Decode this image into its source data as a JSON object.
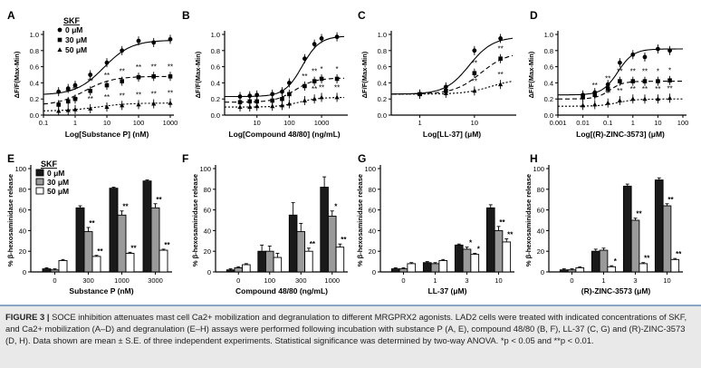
{
  "caption": {
    "title": "FIGURE 3 |",
    "text": "SOCE inhibition attenuates mast cell Ca2+ mobilization and degranulation to different MRGPRX2 agonists. LAD2 cells were treated with indicated concentrations of SKF, and Ca2+ mobilization (A–D) and degranulation (E–H) assays were performed following incubation with substance P (A, E), compound 48/80 (B, F), LL-37 (C, G) and (R)-ZINC-3573 (D, H). Data shown are mean ± S.E. of three independent experiments. Statistical significance was determined by two-way ANOVA. *p < 0.05 and **p < 0.01."
  },
  "legend": {
    "title": "SKF",
    "line_entries": [
      "0 μM",
      "30 μM",
      "50 μM"
    ],
    "bar_entries": [
      "0 μM",
      "30 μM",
      "50 μM"
    ]
  },
  "colors": {
    "bar_0": "#1a1a1a",
    "bar_30": "#9a9a9a",
    "bar_50": "#ffffff",
    "caption_bg": "#e9e9e9",
    "caption_rule": "#8aa7c7"
  },
  "chart_data": [
    {
      "panel": "A",
      "type": "line",
      "xlabel": "Log[Substance P] (nM)",
      "ylabel": "ΔF/F(Max-Min)",
      "x_scale": "log",
      "xlim": [
        0.1,
        1000
      ],
      "x_ticks": [
        "0.1",
        "1",
        "10",
        "100",
        "1000"
      ],
      "ylim": [
        0,
        1.0
      ],
      "y_ticks": [
        "0.0",
        "0.2",
        "0.4",
        "0.6",
        "0.8",
        "1.0"
      ],
      "series": [
        {
          "name": "0 μM",
          "x": [
            0.3,
            0.6,
            1,
            3,
            10,
            30,
            100,
            300,
            1000
          ],
          "y": [
            0.29,
            0.33,
            0.37,
            0.5,
            0.65,
            0.8,
            0.92,
            0.9,
            0.94
          ]
        },
        {
          "name": "30 μM",
          "x": [
            0.3,
            0.6,
            1,
            3,
            10,
            30,
            100,
            300,
            1000
          ],
          "y": [
            0.13,
            0.17,
            0.2,
            0.3,
            0.37,
            0.42,
            0.47,
            0.48,
            0.48
          ]
        },
        {
          "name": "50 μM",
          "x": [
            0.3,
            0.6,
            1,
            3,
            10,
            30,
            100,
            300,
            1000
          ],
          "y": [
            0.05,
            0.06,
            0.07,
            0.08,
            0.1,
            0.12,
            0.13,
            0.14,
            0.15
          ]
        }
      ],
      "annotations": [
        "**",
        "**",
        "**",
        "**",
        "**",
        "**",
        "**",
        "**",
        "**",
        "**",
        "**",
        "**",
        "**",
        "**",
        "**"
      ]
    },
    {
      "panel": "B",
      "type": "line",
      "xlabel": "Log[Compound 48/80] (ng/mL)",
      "ylabel": "ΔF/F(Max-Min)",
      "x_scale": "log",
      "xlim": [
        1,
        5000
      ],
      "x_ticks": [
        "10",
        "100",
        "1000"
      ],
      "ylim": [
        0,
        1.0
      ],
      "y_ticks": [
        "0.0",
        "0.2",
        "0.4",
        "0.6",
        "0.8",
        "1.0"
      ],
      "series": [
        {
          "name": "0 μM",
          "x": [
            3,
            6,
            10,
            30,
            60,
            100,
            300,
            600,
            1000,
            3000
          ],
          "y": [
            0.23,
            0.24,
            0.25,
            0.26,
            0.29,
            0.4,
            0.7,
            0.88,
            0.95,
            0.97
          ]
        },
        {
          "name": "30 μM",
          "x": [
            3,
            6,
            10,
            30,
            60,
            100,
            300,
            600,
            1000,
            3000
          ],
          "y": [
            0.16,
            0.17,
            0.17,
            0.18,
            0.2,
            0.26,
            0.36,
            0.42,
            0.45,
            0.45
          ]
        },
        {
          "name": "50 μM",
          "x": [
            3,
            6,
            10,
            30,
            60,
            100,
            300,
            600,
            1000,
            3000
          ],
          "y": [
            0.1,
            0.1,
            0.11,
            0.11,
            0.12,
            0.14,
            0.18,
            0.2,
            0.22,
            0.22
          ]
        }
      ],
      "annotations": [
        "*",
        "*",
        "**",
        "**",
        "**",
        "**",
        "**"
      ]
    },
    {
      "panel": "C",
      "type": "line",
      "xlabel": "Log[LL-37] (μM)",
      "ylabel": "ΔF/F(Max-Min)",
      "x_scale": "log",
      "xlim": [
        0.3,
        50
      ],
      "x_ticks": [
        "1",
        "10"
      ],
      "ylim": [
        0,
        1.0
      ],
      "y_ticks": [
        "0.0",
        "0.2",
        "0.4",
        "0.6",
        "0.8",
        "1.0"
      ],
      "series": [
        {
          "name": "0 μM",
          "x": [
            1,
            3,
            10,
            30
          ],
          "y": [
            0.26,
            0.35,
            0.8,
            0.95
          ]
        },
        {
          "name": "30 μM",
          "x": [
            1,
            3,
            10,
            30
          ],
          "y": [
            0.26,
            0.3,
            0.52,
            0.7
          ]
        },
        {
          "name": "50 μM",
          "x": [
            1,
            3,
            10,
            30
          ],
          "y": [
            0.26,
            0.27,
            0.3,
            0.38
          ]
        }
      ],
      "annotations": [
        "**",
        "**",
        "**",
        "**"
      ]
    },
    {
      "panel": "D",
      "type": "line",
      "xlabel": "Log[(R)-ZINC-3573] (μM)",
      "ylabel": "ΔF/F(Max-Min)",
      "x_scale": "log",
      "xlim": [
        0.001,
        100
      ],
      "x_ticks": [
        "0.001",
        "0.01",
        "0.1",
        "1",
        "10",
        "100"
      ],
      "ylim": [
        0,
        1.0
      ],
      "y_ticks": [
        "0.0",
        "0.2",
        "0.4",
        "0.6",
        "0.8",
        "1.0"
      ],
      "series": [
        {
          "name": "0 μM",
          "x": [
            0.01,
            0.03,
            0.1,
            0.3,
            1,
            3,
            10,
            30
          ],
          "y": [
            0.25,
            0.28,
            0.38,
            0.65,
            0.75,
            0.72,
            0.82,
            0.8
          ]
        },
        {
          "name": "30 μM",
          "x": [
            0.01,
            0.03,
            0.1,
            0.3,
            1,
            3,
            10,
            30
          ],
          "y": [
            0.22,
            0.25,
            0.33,
            0.42,
            0.42,
            0.42,
            0.42,
            0.43
          ]
        },
        {
          "name": "50 μM",
          "x": [
            0.01,
            0.03,
            0.1,
            0.3,
            1,
            3,
            10,
            30
          ],
          "y": [
            0.12,
            0.13,
            0.15,
            0.18,
            0.2,
            0.2,
            0.2,
            0.21
          ]
        }
      ],
      "annotations": [
        "*",
        "*",
        "**",
        "**",
        "**",
        "**",
        "**",
        "**",
        "**",
        "**",
        "**",
        "**",
        "**"
      ]
    },
    {
      "panel": "E",
      "type": "bar",
      "xlabel": "Substance P (nM)",
      "ylabel": "% β-hexosaminidase release",
      "categories": [
        "0",
        "300",
        "1000",
        "3000"
      ],
      "ylim": [
        0,
        100
      ],
      "y_ticks": [
        "0",
        "20",
        "40",
        "60",
        "80",
        "100"
      ],
      "series": [
        {
          "name": "0 μM",
          "values": [
            3,
            62,
            81,
            88
          ],
          "errors": [
            1,
            2,
            1,
            1
          ]
        },
        {
          "name": "30 μM",
          "values": [
            2,
            39,
            55,
            62
          ],
          "errors": [
            1,
            4,
            4,
            4
          ]
        },
        {
          "name": "50 μM",
          "values": [
            11,
            15,
            18,
            21
          ],
          "errors": [
            1,
            1,
            1,
            1
          ]
        }
      ],
      "significance": [
        [
          "",
          "**",
          "**",
          "**"
        ],
        [
          "",
          "**",
          "**",
          "**"
        ]
      ]
    },
    {
      "panel": "F",
      "type": "bar",
      "xlabel": "Compound 48/80 (ng/mL)",
      "ylabel": "% β-hexosaminidase release",
      "categories": [
        "0",
        "100",
        "300",
        "1000"
      ],
      "ylim": [
        0,
        100
      ],
      "y_ticks": [
        "0",
        "20",
        "40",
        "60",
        "80",
        "100"
      ],
      "series": [
        {
          "name": "0 μM",
          "values": [
            2,
            20,
            55,
            82
          ],
          "errors": [
            1,
            6,
            12,
            10
          ]
        },
        {
          "name": "30 μM",
          "values": [
            4,
            20,
            39,
            54
          ],
          "errors": [
            1,
            5,
            8,
            5
          ]
        },
        {
          "name": "50 μM",
          "values": [
            7,
            14,
            20,
            24
          ],
          "errors": [
            1,
            4,
            3,
            3
          ]
        }
      ],
      "significance": [
        [
          "",
          "",
          "",
          "*"
        ],
        [
          "",
          "",
          "**",
          "**"
        ]
      ]
    },
    {
      "panel": "G",
      "type": "bar",
      "xlabel": "LL-37 (μM)",
      "ylabel": "% β-hexosaminidase release",
      "categories": [
        "0",
        "1",
        "3",
        "10"
      ],
      "ylim": [
        0,
        100
      ],
      "y_ticks": [
        "0",
        "20",
        "40",
        "60",
        "80",
        "100"
      ],
      "series": [
        {
          "name": "0 μM",
          "values": [
            3,
            9,
            26,
            62
          ],
          "errors": [
            1,
            1,
            1,
            3
          ]
        },
        {
          "name": "30 μM",
          "values": [
            3,
            8,
            22,
            40
          ],
          "errors": [
            1,
            1,
            2,
            4
          ]
        },
        {
          "name": "50 μM",
          "values": [
            8,
            11,
            17,
            29
          ],
          "errors": [
            1,
            1,
            1,
            3
          ]
        }
      ],
      "significance": [
        [
          "",
          "",
          "*",
          "**"
        ],
        [
          "",
          "",
          "*",
          "**"
        ]
      ]
    },
    {
      "panel": "H",
      "type": "bar",
      "xlabel": "(R)-ZINC-3573 (μM)",
      "ylabel": "% β-hexosaminidase release",
      "categories": [
        "0",
        "1",
        "3",
        "10"
      ],
      "ylim": [
        0,
        100
      ],
      "y_ticks": [
        "0",
        "20",
        "40",
        "60",
        "80",
        "100"
      ],
      "series": [
        {
          "name": "0 μM",
          "values": [
            2,
            20,
            83,
            89
          ],
          "errors": [
            1,
            2,
            2,
            2
          ]
        },
        {
          "name": "30 μM",
          "values": [
            2,
            21,
            50,
            64
          ],
          "errors": [
            1,
            2,
            2,
            2
          ]
        },
        {
          "name": "50 μM",
          "values": [
            4,
            5,
            8,
            12
          ],
          "errors": [
            1,
            1,
            1,
            1
          ]
        }
      ],
      "significance": [
        [
          "",
          "",
          "**",
          "**"
        ],
        [
          "",
          "*",
          "**",
          "**"
        ]
      ]
    }
  ]
}
